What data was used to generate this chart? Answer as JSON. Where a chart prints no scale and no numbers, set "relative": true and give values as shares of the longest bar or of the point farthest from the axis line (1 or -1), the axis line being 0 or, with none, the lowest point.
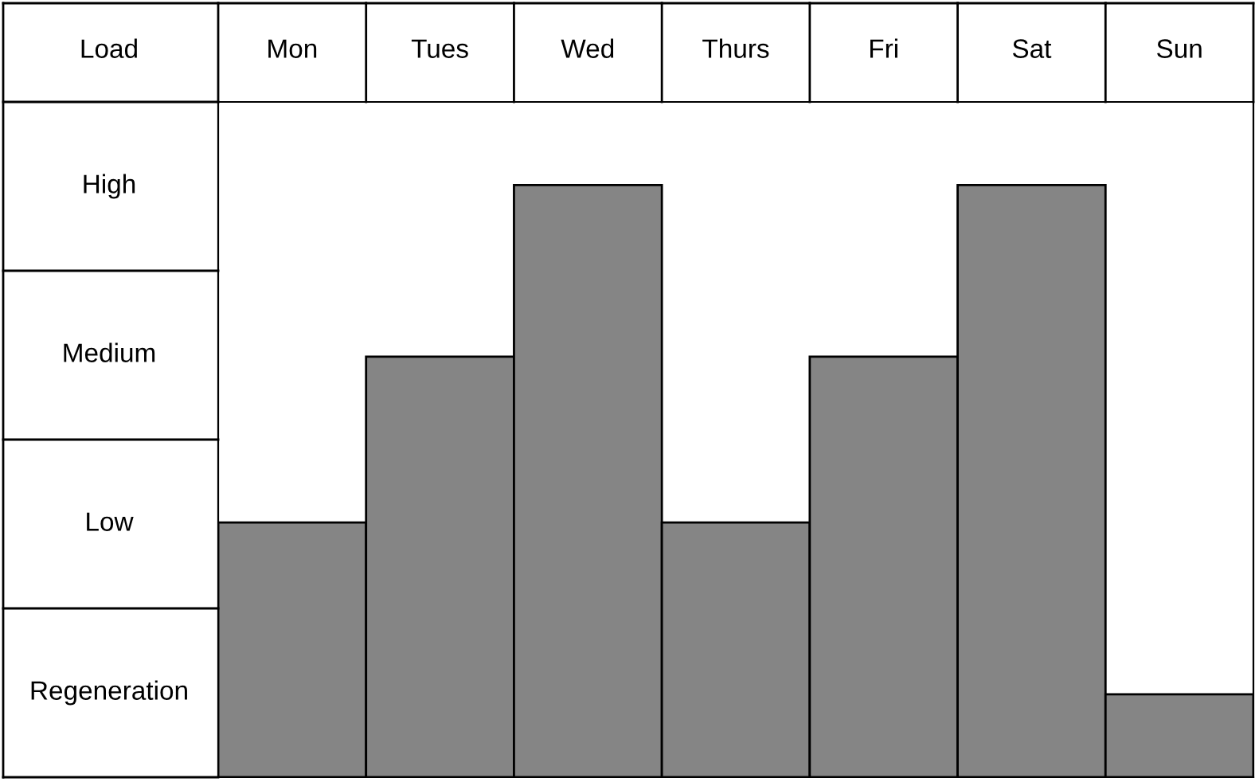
{
  "chart_data": {
    "type": "bar",
    "ylabel": "Load",
    "relative": true,
    "categories": [
      "Mon",
      "Tues",
      "Wed",
      "Thurs",
      "Fri",
      "Sat",
      "Sun"
    ],
    "values": [
      0.43,
      0.71,
      1,
      0.43,
      0.71,
      1,
      0.14
    ],
    "color": "#858585",
    "annotations": [
      "High",
      "Medium",
      "Low",
      "Regeneration"
    ],
    "grid": false,
    "legend": false
  }
}
